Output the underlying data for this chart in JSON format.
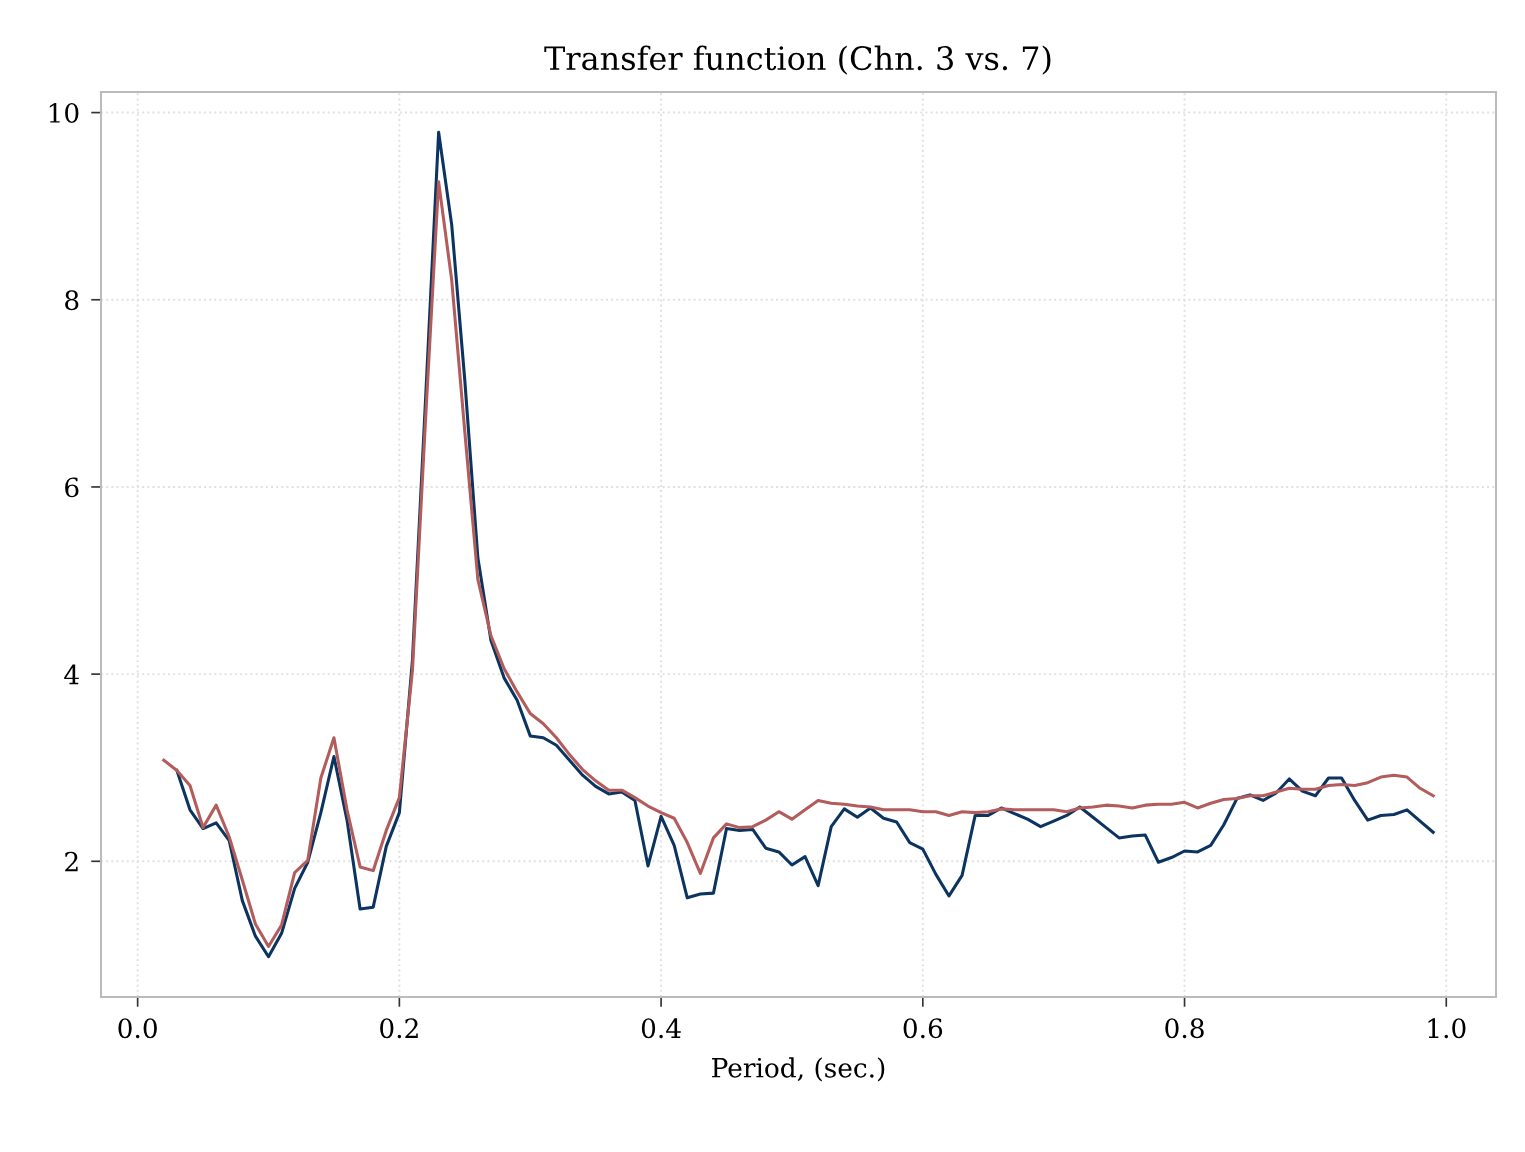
{
  "chart_data": {
    "type": "line",
    "title": "Transfer function (Chn. 3 vs. 7)",
    "xlabel": "Period, (sec.)",
    "x": [
      0.02,
      0.03,
      0.04,
      0.05,
      0.06,
      0.07,
      0.08,
      0.09,
      0.1,
      0.11,
      0.12,
      0.13,
      0.14,
      0.15,
      0.16,
      0.17,
      0.18,
      0.19,
      0.2,
      0.21,
      0.22,
      0.23,
      0.24,
      0.25,
      0.26,
      0.27,
      0.28,
      0.29,
      0.3,
      0.31,
      0.32,
      0.33,
      0.34,
      0.35,
      0.36,
      0.37,
      0.38,
      0.39,
      0.4,
      0.41,
      0.42,
      0.43,
      0.44,
      0.45,
      0.46,
      0.47,
      0.48,
      0.49,
      0.5,
      0.51,
      0.52,
      0.53,
      0.54,
      0.55,
      0.56,
      0.57,
      0.58,
      0.59,
      0.6,
      0.61,
      0.62,
      0.63,
      0.64,
      0.65,
      0.66,
      0.67,
      0.68,
      0.69,
      0.7,
      0.71,
      0.72,
      0.73,
      0.74,
      0.75,
      0.76,
      0.77,
      0.78,
      0.79,
      0.8,
      0.81,
      0.82,
      0.83,
      0.84,
      0.85,
      0.86,
      0.87,
      0.88,
      0.89,
      0.9,
      0.91,
      0.92,
      0.93,
      0.94,
      0.95,
      0.96,
      0.97,
      0.98,
      0.99
    ],
    "series": [
      {
        "color": "#0b3560",
        "values": [
          null,
          2.97,
          2.55,
          2.35,
          2.41,
          2.22,
          1.58,
          1.2,
          0.98,
          1.23,
          1.71,
          1.99,
          2.52,
          3.12,
          2.44,
          1.49,
          1.51,
          2.16,
          2.52,
          4.15,
          6.93,
          9.79,
          8.8,
          7.14,
          5.24,
          4.36,
          3.96,
          3.72,
          3.34,
          3.32,
          3.24,
          3.08,
          2.92,
          2.8,
          2.72,
          2.74,
          2.65,
          1.95,
          2.48,
          2.17,
          1.61,
          1.65,
          1.66,
          2.35,
          2.33,
          2.34,
          2.14,
          2.1,
          1.96,
          2.05,
          1.74,
          2.37,
          2.56,
          2.47,
          2.57,
          2.46,
          2.42,
          2.2,
          2.13,
          1.86,
          1.63,
          1.85,
          2.49,
          2.49,
          2.57,
          2.51,
          2.45,
          2.37,
          2.43,
          2.49,
          2.58,
          2.47,
          2.36,
          2.25,
          2.27,
          2.28,
          1.99,
          2.04,
          2.11,
          2.1,
          2.17,
          2.39,
          2.67,
          2.71,
          2.65,
          2.73,
          2.88,
          2.75,
          2.7,
          2.89,
          2.89,
          2.65,
          2.44,
          2.49,
          2.5,
          2.55,
          2.43,
          2.31
        ]
      },
      {
        "color": "#b35c5c",
        "values": [
          3.08,
          2.97,
          2.81,
          2.36,
          2.6,
          2.26,
          1.8,
          1.33,
          1.09,
          1.32,
          1.88,
          2.01,
          2.89,
          3.32,
          2.55,
          1.94,
          1.9,
          2.33,
          2.68,
          4.04,
          6.72,
          9.26,
          8.21,
          6.59,
          5.01,
          4.41,
          4.06,
          3.81,
          3.58,
          3.47,
          3.32,
          3.14,
          2.98,
          2.86,
          2.76,
          2.76,
          2.68,
          2.59,
          2.52,
          2.46,
          2.2,
          1.87,
          2.25,
          2.4,
          2.36,
          2.37,
          2.44,
          2.53,
          2.45,
          2.55,
          2.65,
          2.62,
          2.61,
          2.59,
          2.58,
          2.55,
          2.55,
          2.55,
          2.53,
          2.53,
          2.49,
          2.53,
          2.52,
          2.53,
          2.56,
          2.55,
          2.55,
          2.55,
          2.55,
          2.53,
          2.57,
          2.58,
          2.6,
          2.59,
          2.57,
          2.6,
          2.61,
          2.61,
          2.63,
          2.57,
          2.62,
          2.66,
          2.67,
          2.7,
          2.7,
          2.74,
          2.78,
          2.77,
          2.77,
          2.81,
          2.82,
          2.81,
          2.84,
          2.9,
          2.92,
          2.9,
          2.78,
          2.7
        ]
      }
    ],
    "xlim": [
      -0.028,
      1.038
    ],
    "ylim": [
      0.55,
      10.22
    ],
    "xticks": [
      {
        "value": 0,
        "label": "0.0"
      },
      0.2,
      0.4,
      0.6,
      0.8,
      {
        "value": 1,
        "label": "1.0"
      }
    ],
    "yticks": [
      2,
      4,
      6,
      8,
      10
    ],
    "grid": true,
    "line_style": "solid",
    "marker": "none"
  }
}
